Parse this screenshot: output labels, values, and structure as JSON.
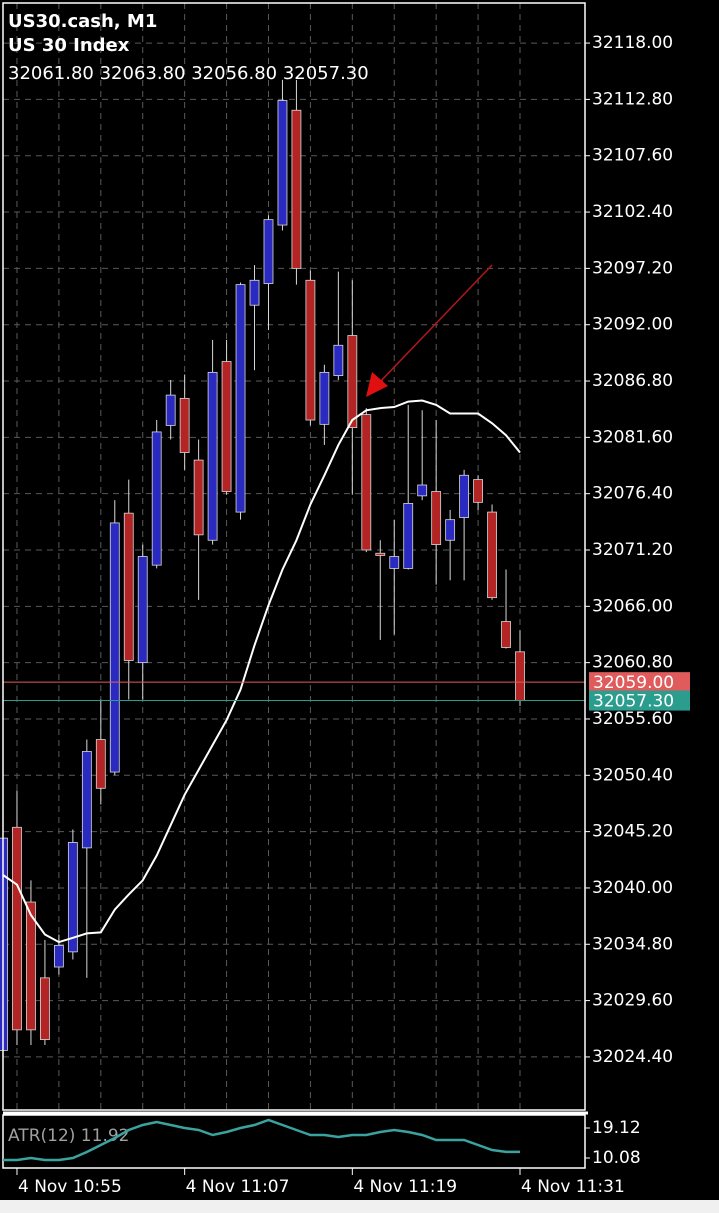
{
  "chart_data": {
    "type": "candlestick",
    "title": "US30.cash, M1",
    "subtitle": "US 30 Index",
    "ohlc_label": "32061.80 32063.80 32056.80 32057.30",
    "categories": [
      null,
      "4 Nov 10:55",
      null,
      null,
      null,
      null,
      null,
      null,
      null,
      null,
      null,
      null,
      null,
      "4 Nov 11:07",
      null,
      null,
      null,
      null,
      null,
      null,
      null,
      null,
      null,
      null,
      null,
      "4 Nov 11:19",
      null,
      null,
      null,
      null,
      null,
      null,
      null,
      null,
      null,
      null,
      null,
      "4 Nov 11:31"
    ],
    "open": [
      32025.0,
      32045.6,
      32038.7,
      32031.7,
      32032.7,
      32034.1,
      32043.7,
      32053.7,
      32050.7,
      32074.6,
      32060.8,
      32069.8,
      32082.7,
      32085.2,
      32079.5,
      32072.1,
      32088.6,
      32074.7,
      32093.8,
      32095.8,
      32101.2,
      32111.8,
      32096.1,
      32082.8,
      32087.3,
      32091.0,
      32083.7,
      32070.9,
      32069.5,
      32069.5,
      32076.2,
      32076.6,
      32072.1,
      32074.2,
      32077.7,
      32074.7,
      32064.6,
      32061.8
    ],
    "high": [
      32045.0,
      32049.0,
      32040.7,
      32035.2,
      32035.7,
      32045.4,
      32053.7,
      32057.4,
      32075.8,
      32077.7,
      32071.7,
      32083.2,
      32086.9,
      32087.4,
      32081.4,
      32090.6,
      32090.6,
      32095.9,
      32097.5,
      32102.1,
      32114.6,
      32114.6,
      32097.0,
      32088.3,
      32096.9,
      32096.1,
      32084.3,
      32072.1,
      32074.0,
      32084.6,
      32084.1,
      32083.2,
      32074.9,
      32078.6,
      32078.1,
      32075.4,
      32069.4,
      32063.8
    ],
    "low": [
      32024.8,
      32025.5,
      32025.5,
      32025.5,
      32032.0,
      32033.4,
      32031.7,
      32047.7,
      32050.4,
      32057.4,
      32057.4,
      32069.5,
      32081.4,
      32078.6,
      32066.6,
      32071.7,
      32076.3,
      32074.0,
      32087.8,
      32091.5,
      32100.7,
      32095.7,
      32082.7,
      32080.9,
      32086.9,
      32076.3,
      32071.0,
      32062.9,
      32063.4,
      32069.4,
      32075.8,
      32068.0,
      32068.4,
      32068.4,
      32074.9,
      32066.6,
      32062.1,
      32056.8
    ],
    "close": [
      32044.6,
      32026.9,
      32026.9,
      32026.0,
      32034.7,
      32044.2,
      32052.6,
      32049.2,
      32073.7,
      32061.0,
      32070.6,
      32082.1,
      32085.5,
      32080.2,
      32072.6,
      32087.6,
      32076.6,
      32095.7,
      32096.1,
      32101.7,
      32112.7,
      32097.2,
      32083.2,
      32087.6,
      32090.1,
      32082.5,
      32071.2,
      32070.7,
      32070.6,
      32075.5,
      32077.2,
      32071.7,
      32074.0,
      32078.1,
      32075.6,
      32066.8,
      32062.2,
      32057.3
    ],
    "up_color": "#2a2ac0",
    "down_color": "#b32424",
    "moving_average": {
      "color": "#ffffff",
      "values": [
        32041.2,
        32040.3,
        32037.5,
        32035.7,
        32035.0,
        32035.4,
        32035.8,
        32035.9,
        32038.0,
        32039.4,
        32040.7,
        32043.0,
        32045.8,
        32048.6,
        32050.9,
        32053.2,
        32055.5,
        32058.3,
        32062.4,
        32066.1,
        32069.4,
        32072.1,
        32075.4,
        32078.1,
        32080.9,
        32083.2,
        32084.1,
        32084.3,
        32084.4,
        32084.9,
        32085.0,
        32084.6,
        32083.8,
        32083.8,
        32083.8,
        32082.9,
        32081.8,
        32080.2
      ]
    },
    "ask_line": {
      "value": 32059.0,
      "label": "32059.00",
      "color": "#e05b5b"
    },
    "bid_line": {
      "value": 32057.3,
      "label": "32057.30",
      "color": "#2a9d8f"
    },
    "ylim": [
      32019.5,
      32121.7
    ],
    "yticks": [
      {
        "value": 32118.0,
        "label": "32118.00"
      },
      {
        "value": 32112.8,
        "label": "32112.80"
      },
      {
        "value": 32107.6,
        "label": "32107.60"
      },
      {
        "value": 32102.4,
        "label": "32102.40"
      },
      {
        "value": 32097.2,
        "label": "32097.20"
      },
      {
        "value": 32092.0,
        "label": "32092.00"
      },
      {
        "value": 32086.8,
        "label": "32086.80"
      },
      {
        "value": 32081.6,
        "label": "32081.60"
      },
      {
        "value": 32076.4,
        "label": "32076.40"
      },
      {
        "value": 32071.2,
        "label": "32071.20"
      },
      {
        "value": 32066.0,
        "label": "32066.00"
      },
      {
        "value": 32060.8,
        "label": "32060.80"
      },
      {
        "value": 32055.6,
        "label": "32055.60"
      },
      {
        "value": 32050.4,
        "label": "32050.40"
      },
      {
        "value": 32045.2,
        "label": "32045.20"
      },
      {
        "value": 32040.0,
        "label": "32040.00"
      },
      {
        "value": 32034.8,
        "label": "32034.80"
      },
      {
        "value": 32029.6,
        "label": "32029.60"
      },
      {
        "value": 32024.4,
        "label": "32024.40"
      }
    ],
    "grid": true,
    "indicator": {
      "name": "ATR(12) 11.92",
      "color": "#3aa3a0",
      "values": [
        9.48,
        9.48,
        10.08,
        9.48,
        9.48,
        10.08,
        11.89,
        14.0,
        16.11,
        18.52,
        20.02,
        20.93,
        20.02,
        19.12,
        18.52,
        17.01,
        17.91,
        19.12,
        20.02,
        21.53,
        20.02,
        18.52,
        17.01,
        17.01,
        16.41,
        17.01,
        17.01,
        17.91,
        18.52,
        17.91,
        17.01,
        15.5,
        15.5,
        15.5,
        14.0,
        12.5,
        11.92,
        11.92
      ],
      "ylim": [
        7.07,
        23.04
      ],
      "yticks": [
        {
          "value": 19.12,
          "label": "19.12"
        },
        {
          "value": 10.08,
          "label": "10.08"
        }
      ]
    }
  }
}
